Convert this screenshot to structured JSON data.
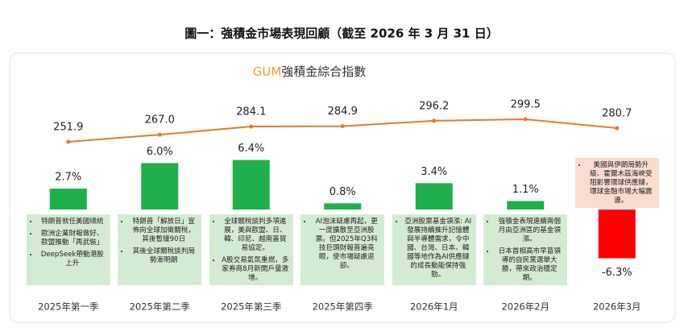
{
  "heading": "圖一：強積金市場表現回顧（截至 2026 年 3 月 31 日）",
  "chart_data": {
    "type": "bar",
    "title_parts": [
      "GUM",
      "強積金綜合指數"
    ],
    "title_colors": [
      "#f0a020",
      "#333333"
    ],
    "categories": [
      "2025年第一季",
      "2025年第二季",
      "2025年第三季",
      "2025年第四季",
      "2026年1月",
      "2026年2月",
      "2026年3月"
    ],
    "values": [
      2.7,
      6.0,
      6.4,
      0.8,
      3.4,
      1.1,
      -6.3
    ],
    "value_labels": [
      "2.7%",
      "6.0%",
      "6.4%",
      "0.8%",
      "3.4%",
      "1.1%",
      "-6.3%"
    ],
    "color": "#1faf4b",
    "negative_color": "#ff0000",
    "ylim": [
      -10,
      12
    ],
    "line": {
      "values": [
        251.9,
        267.0,
        284.1,
        284.9,
        296.2,
        299.5,
        280.7
      ],
      "value_labels": [
        "251.9",
        "267.0",
        "284.1",
        "284.9",
        "296.2",
        "299.5",
        "280.7"
      ],
      "color": "#e8792b",
      "axis": "y2"
    },
    "y2lim": [
      200,
      350
    ],
    "notes": [
      [
        "特朗普就任美國總統",
        "歐洲企業財報做好、歐盟推動「再武裝」",
        "DeepSeek帶動港股上升"
      ],
      [
        "特朗普「解放日」宣佈向全球加徵關稅，其後暫緩90日",
        "其後全球關稅談判局勢漸明朗"
      ],
      [
        "全球關稅談判多項進展，美與歐盟、日、韓、印尼、越南簽貿易協定。",
        "A股交易氣氛重燃，多家券商8月新開戶量激增。"
      ],
      [
        "AI泡沫疑慮再起，更一度擴散至亞洲股票。但2025年Q3科技巨頭財報普遍亮眼，使市場疑慮退卻。"
      ],
      [
        "亞洲股票基金領漲: AI發展持續推升記憶體與半導體需求，令中國、台灣、日本、韓國等地作為AI供應鏈的成長動能保持強勁。"
      ],
      [
        "強積金表現連續兩個月由亞洲區的基金領漲。",
        "日本首相高市早苗領導的自民黨選舉大勝，帶來政治穩定期。"
      ],
      [
        "美國與伊朗局勢升級、霍爾木茲海峽受阻影響環球供應鏈，環球金融市場大幅震盪。"
      ]
    ],
    "note_colors": [
      "#d4ebd3",
      "#d4ebd3",
      "#d4ebd3",
      "#d4ebd3",
      "#d4ebd3",
      "#d4ebd3",
      "#fadccf"
    ]
  }
}
